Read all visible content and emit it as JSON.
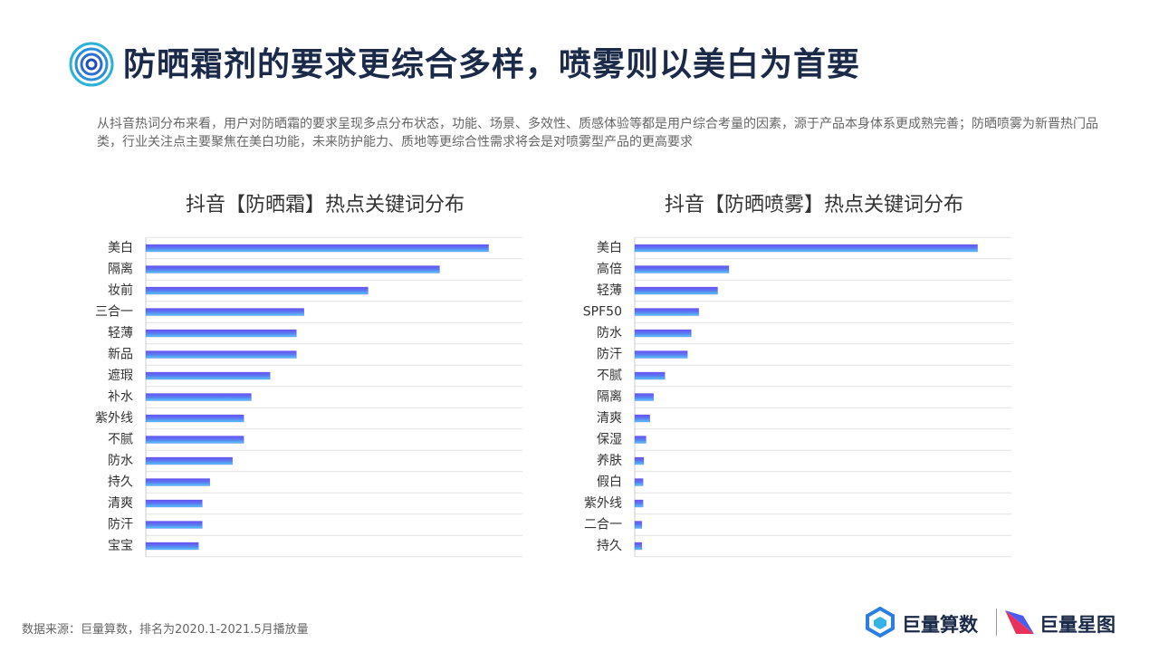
{
  "header": {
    "title": "防晒霜剂的要求更综合多样，喷雾则以美白为首要",
    "description": "从抖音热词分布来看，用户对防晒霜的要求呈现多点分布状态，功能、场景、多效性、质感体验等都是用户综合考量的因素，源于产品本身体系更成熟完善；防晒喷雾为新晋热门品类，行业关注点主要聚焦在美白功能，未来防护能力、质地等更综合性需求将会是对喷雾型产品的更高要求"
  },
  "footer": {
    "source": "数据来源：巨量算数，排名为2020.1-2021.5月播放量",
    "logo_1": "巨量算数",
    "logo_2": "巨量星图"
  },
  "chart_data": [
    {
      "type": "bar",
      "title": "抖音【防晒霜】热点关键词分布",
      "orientation": "horizontal",
      "color": "#5a62f0",
      "categories": [
        "美白",
        "隔离",
        "妆前",
        "三合一",
        "轻薄",
        "新品",
        "遮瑕",
        "补水",
        "紫外线",
        "不腻",
        "防水",
        "持久",
        "清爽",
        "防汗",
        "宝宝"
      ],
      "values": [
        91,
        78,
        59,
        42,
        40,
        40,
        33,
        28,
        26,
        26,
        23,
        17,
        15,
        15,
        14
      ],
      "xlim": [
        0,
        100
      ],
      "grid": true
    },
    {
      "type": "bar",
      "title": "抖音【防晒喷雾】热点关键词分布",
      "orientation": "horizontal",
      "color": "#5a62f0",
      "categories": [
        "美白",
        "高倍",
        "轻薄",
        "SPF50",
        "防水",
        "防汗",
        "不腻",
        "隔离",
        "清爽",
        "保湿",
        "养肤",
        "假白",
        "紫外线",
        "二合一",
        "持久"
      ],
      "values": [
        91,
        25,
        22,
        17,
        15,
        14,
        8,
        5,
        4,
        3,
        2.4,
        2.2,
        2.2,
        1.9,
        1.9
      ],
      "xlim": [
        0,
        100
      ],
      "grid": true
    }
  ]
}
